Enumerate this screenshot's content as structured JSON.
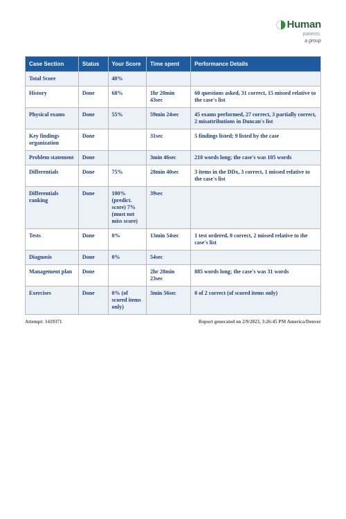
{
  "logo": {
    "brand": "Human",
    "subtitle": "patients",
    "group": "a group"
  },
  "columns": [
    "Case Section",
    "Status",
    "Your Score",
    "Time spent",
    "Performance Details"
  ],
  "rows": [
    {
      "alt": true,
      "section": "Total Score",
      "status": "",
      "score": "40%",
      "time": "",
      "details": ""
    },
    {
      "alt": false,
      "section": "History",
      "status": "Done",
      "score": "68%",
      "time": "1hr 20min 43sec",
      "details": "60 questions asked, 31 correct, 15 missed relative to the case's list"
    },
    {
      "alt": true,
      "section": "Physical exams",
      "status": "Done",
      "score": "55%",
      "time": "59min 24sec",
      "details": "45 exams performed, 27 correct, 3 partially correct, 2 misattributions in Duncan's list"
    },
    {
      "alt": false,
      "section": "Key findings organization",
      "status": "Done",
      "score": "",
      "time": "31sec",
      "details": "5 findings listed; 9 listed by the case"
    },
    {
      "alt": true,
      "section": "Problem statement",
      "status": "Done",
      "score": "",
      "time": "3min 46sec",
      "details": "210 words long; the case's was 105 words"
    },
    {
      "alt": false,
      "section": "Differentials",
      "status": "Done",
      "score": "75%",
      "time": "28min 40sec",
      "details": "3 items in the DDx, 3 correct, 1 missed relative to the case's list"
    },
    {
      "alt": true,
      "section": "Differentials ranking",
      "status": "Done",
      "score": "100% (predict. score) 7% (must not miss score)",
      "time": "39sec",
      "details": ""
    },
    {
      "alt": false,
      "section": "Tests",
      "status": "Done",
      "score": "0%",
      "time": "13min 54sec",
      "details": "1 test ordered, 0 correct, 2 missed relative to the case's list"
    },
    {
      "alt": true,
      "section": "Diagnosis",
      "status": "Done",
      "score": "0%",
      "time": "54sec",
      "details": ""
    },
    {
      "alt": false,
      "section": "Management plan",
      "status": "Done",
      "score": "",
      "time": "2hr 28min 23sec",
      "details": "885 words long; the case's was 31 words"
    },
    {
      "alt": true,
      "section": "Exercises",
      "status": "Done",
      "score": "0% (of scored items only)",
      "time": "3min 56sec",
      "details": "0 of 2 correct (of scored items only)"
    }
  ],
  "footer": {
    "left": "Attempt: 1419371",
    "right": "Report generated on 2/9/2023, 3:26:45 PM America/Denver"
  },
  "colors": {
    "header_bg": "#1e5a9e",
    "header_fg": "#ffffff",
    "row_alt_bg": "#ecf1f8",
    "text": "#1d3d6f",
    "border": "#b8b8b8"
  }
}
